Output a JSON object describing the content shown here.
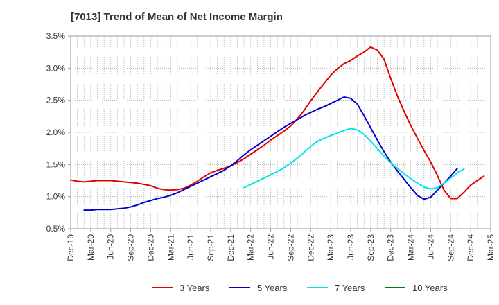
{
  "chart_data": {
    "type": "line",
    "title": "[7013]  Trend of Mean of Net Income Margin",
    "xlabel": "",
    "ylabel": "",
    "x_ticks": [
      "Dec-19",
      "Mar-20",
      "Jun-20",
      "Sep-20",
      "Dec-20",
      "Mar-21",
      "Jun-21",
      "Sep-21",
      "Dec-21",
      "Mar-22",
      "Jun-22",
      "Sep-22",
      "Dec-22",
      "Mar-23",
      "Jun-23",
      "Sep-23",
      "Dec-23",
      "Mar-24",
      "Jun-24",
      "Sep-24",
      "Dec-24",
      "Mar-25"
    ],
    "y_ticks": [
      "0.5%",
      "1.0%",
      "1.5%",
      "2.0%",
      "2.5%",
      "3.0%",
      "3.5%"
    ],
    "ylim": [
      0.5,
      3.5
    ],
    "grid": true,
    "legend_position": "bottom",
    "series": [
      {
        "name": "3 Years",
        "color": "#e00000",
        "points": [
          [
            "Dec-19",
            1.26
          ],
          [
            "Jan-20",
            1.24
          ],
          [
            "Feb-20",
            1.23
          ],
          [
            "Mar-20",
            1.24
          ],
          [
            "Apr-20",
            1.25
          ],
          [
            "May-20",
            1.25
          ],
          [
            "Jun-20",
            1.25
          ],
          [
            "Jul-20",
            1.24
          ],
          [
            "Aug-20",
            1.23
          ],
          [
            "Sep-20",
            1.22
          ],
          [
            "Oct-20",
            1.21
          ],
          [
            "Nov-20",
            1.19
          ],
          [
            "Dec-20",
            1.17
          ],
          [
            "Jan-21",
            1.13
          ],
          [
            "Feb-21",
            1.11
          ],
          [
            "Mar-21",
            1.1
          ],
          [
            "Apr-21",
            1.11
          ],
          [
            "May-21",
            1.13
          ],
          [
            "Jun-21",
            1.18
          ],
          [
            "Jul-21",
            1.24
          ],
          [
            "Aug-21",
            1.31
          ],
          [
            "Sep-21",
            1.37
          ],
          [
            "Oct-21",
            1.41
          ],
          [
            "Nov-21",
            1.44
          ],
          [
            "Dec-21",
            1.48
          ],
          [
            "Jan-22",
            1.53
          ],
          [
            "Feb-22",
            1.59
          ],
          [
            "Mar-22",
            1.66
          ],
          [
            "Apr-22",
            1.73
          ],
          [
            "May-22",
            1.8
          ],
          [
            "Jun-22",
            1.88
          ],
          [
            "Jul-22",
            1.95
          ],
          [
            "Aug-22",
            2.02
          ],
          [
            "Sep-22",
            2.1
          ],
          [
            "Oct-22",
            2.21
          ],
          [
            "Nov-22",
            2.34
          ],
          [
            "Dec-22",
            2.49
          ],
          [
            "Jan-23",
            2.63
          ],
          [
            "Feb-23",
            2.76
          ],
          [
            "Mar-23",
            2.89
          ],
          [
            "Apr-23",
            2.99
          ],
          [
            "May-23",
            3.07
          ],
          [
            "Jun-23",
            3.12
          ],
          [
            "Jul-23",
            3.19
          ],
          [
            "Aug-23",
            3.25
          ],
          [
            "Sep-23",
            3.33
          ],
          [
            "Oct-23",
            3.28
          ],
          [
            "Nov-23",
            3.14
          ],
          [
            "Dec-23",
            2.84
          ],
          [
            "Jan-24",
            2.57
          ],
          [
            "Feb-24",
            2.33
          ],
          [
            "Mar-24",
            2.11
          ],
          [
            "Apr-24",
            1.91
          ],
          [
            "May-24",
            1.72
          ],
          [
            "Jun-24",
            1.54
          ],
          [
            "Jul-24",
            1.33
          ],
          [
            "Aug-24",
            1.1
          ],
          [
            "Sep-24",
            0.97
          ],
          [
            "Oct-24",
            0.97
          ],
          [
            "Nov-24",
            1.07
          ],
          [
            "Dec-24",
            1.18
          ],
          [
            "Jan-25",
            1.25
          ],
          [
            "Feb-25",
            1.32
          ]
        ]
      },
      {
        "name": "5 Years",
        "color": "#0000cc",
        "points": [
          [
            "Feb-20",
            0.79
          ],
          [
            "Mar-20",
            0.79
          ],
          [
            "Apr-20",
            0.8
          ],
          [
            "May-20",
            0.8
          ],
          [
            "Jun-20",
            0.8
          ],
          [
            "Jul-20",
            0.81
          ],
          [
            "Aug-20",
            0.82
          ],
          [
            "Sep-20",
            0.84
          ],
          [
            "Oct-20",
            0.87
          ],
          [
            "Nov-20",
            0.91
          ],
          [
            "Dec-20",
            0.94
          ],
          [
            "Jan-21",
            0.97
          ],
          [
            "Feb-21",
            0.99
          ],
          [
            "Mar-21",
            1.02
          ],
          [
            "Apr-21",
            1.06
          ],
          [
            "May-21",
            1.11
          ],
          [
            "Jun-21",
            1.16
          ],
          [
            "Jul-21",
            1.21
          ],
          [
            "Aug-21",
            1.26
          ],
          [
            "Sep-21",
            1.31
          ],
          [
            "Oct-21",
            1.36
          ],
          [
            "Nov-21",
            1.41
          ],
          [
            "Dec-21",
            1.48
          ],
          [
            "Jan-22",
            1.56
          ],
          [
            "Feb-22",
            1.65
          ],
          [
            "Mar-22",
            1.73
          ],
          [
            "Apr-22",
            1.8
          ],
          [
            "May-22",
            1.87
          ],
          [
            "Jun-22",
            1.94
          ],
          [
            "Jul-22",
            2.01
          ],
          [
            "Aug-22",
            2.08
          ],
          [
            "Sep-22",
            2.14
          ],
          [
            "Oct-22",
            2.2
          ],
          [
            "Nov-22",
            2.26
          ],
          [
            "Dec-22",
            2.31
          ],
          [
            "Jan-23",
            2.36
          ],
          [
            "Feb-23",
            2.4
          ],
          [
            "Mar-23",
            2.45
          ],
          [
            "Apr-23",
            2.5
          ],
          [
            "May-23",
            2.55
          ],
          [
            "Jun-23",
            2.53
          ],
          [
            "Jul-23",
            2.44
          ],
          [
            "Aug-23",
            2.26
          ],
          [
            "Sep-23",
            2.07
          ],
          [
            "Oct-23",
            1.88
          ],
          [
            "Nov-23",
            1.7
          ],
          [
            "Dec-23",
            1.54
          ],
          [
            "Jan-24",
            1.4
          ],
          [
            "Feb-24",
            1.27
          ],
          [
            "Mar-24",
            1.14
          ],
          [
            "Apr-24",
            1.02
          ],
          [
            "May-24",
            0.96
          ],
          [
            "Jun-24",
            0.99
          ],
          [
            "Jul-24",
            1.1
          ],
          [
            "Aug-24",
            1.21
          ],
          [
            "Sep-24",
            1.32
          ],
          [
            "Oct-24",
            1.44
          ]
        ]
      },
      {
        "name": "7 Years",
        "color": "#00e5e5",
        "points": [
          [
            "Feb-22",
            1.14
          ],
          [
            "Mar-22",
            1.19
          ],
          [
            "Apr-22",
            1.24
          ],
          [
            "May-22",
            1.29
          ],
          [
            "Jun-22",
            1.34
          ],
          [
            "Jul-22",
            1.39
          ],
          [
            "Aug-22",
            1.45
          ],
          [
            "Sep-22",
            1.52
          ],
          [
            "Oct-22",
            1.6
          ],
          [
            "Nov-22",
            1.69
          ],
          [
            "Dec-22",
            1.78
          ],
          [
            "Jan-23",
            1.86
          ],
          [
            "Feb-23",
            1.91
          ],
          [
            "Mar-23",
            1.95
          ],
          [
            "Apr-23",
            1.99
          ],
          [
            "May-23",
            2.03
          ],
          [
            "Jun-23",
            2.06
          ],
          [
            "Jul-23",
            2.04
          ],
          [
            "Aug-23",
            1.97
          ],
          [
            "Sep-23",
            1.86
          ],
          [
            "Oct-23",
            1.75
          ],
          [
            "Nov-23",
            1.63
          ],
          [
            "Dec-23",
            1.53
          ],
          [
            "Jan-24",
            1.44
          ],
          [
            "Feb-24",
            1.36
          ],
          [
            "Mar-24",
            1.28
          ],
          [
            "Apr-24",
            1.21
          ],
          [
            "May-24",
            1.15
          ],
          [
            "Jun-24",
            1.12
          ],
          [
            "Jul-24",
            1.14
          ],
          [
            "Aug-24",
            1.21
          ],
          [
            "Sep-24",
            1.29
          ],
          [
            "Oct-24",
            1.37
          ],
          [
            "Nov-24",
            1.43
          ]
        ]
      },
      {
        "name": "10 Years",
        "color": "#008000",
        "points": []
      }
    ]
  }
}
